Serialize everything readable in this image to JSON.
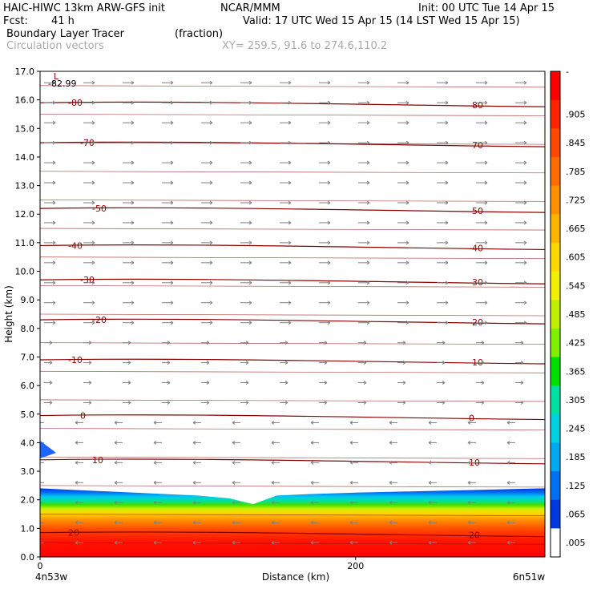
{
  "header": {
    "model": "HAIC-HIWC 13km ARW-GFS init",
    "org": "NCAR/MMM",
    "init": "Init: 00 UTC Tue 14 Apr 15",
    "fcst_label": "Fcst:",
    "fcst_value": "41 h",
    "valid": "Valid: 17 UTC Wed 15 Apr 15 (14 LST Wed 15 Apr 15)",
    "field": "Boundary Layer Tracer",
    "field_units": "(fraction)",
    "vectors": "Circulation vectors",
    "xy": "XY= 259.5, 91.6 to 274.6,110.2"
  },
  "chart_data": {
    "type": "heatmap",
    "ylabel": "Height (km)",
    "xlabel": "Distance (km)",
    "x_left_label": "4n53w",
    "x_right_label": "6n51w",
    "xlim": [
      0,
      320
    ],
    "ylim": [
      0,
      17
    ],
    "x_ticks": [
      0,
      200
    ],
    "x_tick_labels": [
      "0",
      "200"
    ],
    "y_ticks": [
      0,
      1,
      2,
      3,
      4,
      5,
      6,
      7,
      8,
      9,
      10,
      11,
      12,
      13,
      14,
      15,
      16,
      17
    ],
    "y_tick_labels": [
      "0.0",
      "1.0",
      "2.0",
      "3.0",
      "4.0",
      "5.0",
      "6.0",
      "7.0",
      "8.0",
      "9.0",
      "10.0",
      "11.0",
      "12.0",
      "13.0",
      "14.0",
      "15.0",
      "16.0",
      "17.0"
    ],
    "colorbar": {
      "labels": [
        "-",
        ".905",
        ".845",
        ".785",
        ".725",
        ".665",
        ".605",
        ".545",
        ".485",
        ".425",
        ".365",
        ".305",
        ".245",
        ".185",
        ".125",
        ".065",
        ".005"
      ],
      "colors": [
        "#ff0000",
        "#ff2400",
        "#ff4800",
        "#ff6c00",
        "#ff9000",
        "#ffb400",
        "#ffd800",
        "#f0f000",
        "#c0f000",
        "#80f000",
        "#00e000",
        "#00e0a0",
        "#00d0e0",
        "#00a8f0",
        "#0070f0",
        "#0038e0",
        "#ffffff"
      ]
    },
    "temperature_contours": [
      {
        "label": "-80",
        "height_km": 15.9
      },
      {
        "label": "-70",
        "height_km": 14.5
      },
      {
        "label": "-50",
        "height_km": 12.2
      },
      {
        "label": "-40",
        "height_km": 10.9
      },
      {
        "label": "-30",
        "height_km": 9.7
      },
      {
        "label": "-20",
        "height_km": 8.3
      },
      {
        "label": "-10",
        "height_km": 6.9
      },
      {
        "label": "0",
        "height_km": 4.95
      },
      {
        "label": "10",
        "height_km": 3.4
      },
      {
        "label": "20",
        "height_km": 0.85
      }
    ],
    "min_label": "L",
    "min_value": "-82.99",
    "tracer_top_km": [
      2.4,
      2.35,
      2.3,
      2.25,
      2.2,
      2.15,
      2.05,
      1.85,
      2.15,
      2.2,
      2.25,
      2.3,
      2.35,
      2.4
    ],
    "tracer_top_x_km": [
      0,
      20,
      40,
      60,
      80,
      100,
      120,
      135,
      150,
      170,
      200,
      240,
      280,
      320
    ]
  }
}
